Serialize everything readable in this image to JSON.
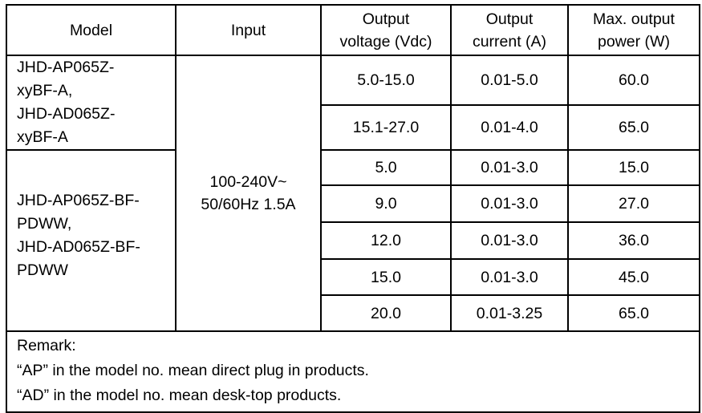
{
  "headers": {
    "model": "Model",
    "input": "Input",
    "output_voltage": [
      "Output",
      "voltage (Vdc)"
    ],
    "output_current": [
      "Output",
      "current (A)"
    ],
    "max_power": [
      "Max. output",
      "power (W)"
    ]
  },
  "groups": [
    {
      "model_lines": [
        "JHD-AP065Z-",
        "xyBF-A,",
        "JHD-AD065Z-",
        "xyBF-A"
      ],
      "rows": [
        {
          "voltage": "5.0-15.0",
          "current": "0.01-5.0",
          "power": "60.0"
        },
        {
          "voltage": "15.1-27.0",
          "current": "0.01-4.0",
          "power": "65.0"
        }
      ]
    },
    {
      "model_lines": [
        "JHD-AP065Z-BF-",
        "PDWW,",
        "JHD-AD065Z-BF-",
        "PDWW"
      ],
      "rows": [
        {
          "voltage": "5.0",
          "current": "0.01-3.0",
          "power": "15.0"
        },
        {
          "voltage": "9.0",
          "current": "0.01-3.0",
          "power": "27.0"
        },
        {
          "voltage": "12.0",
          "current": "0.01-3.0",
          "power": "36.0"
        },
        {
          "voltage": "15.0",
          "current": "0.01-3.0",
          "power": "45.0"
        },
        {
          "voltage": "20.0",
          "current": "0.01-3.25",
          "power": "65.0"
        }
      ]
    }
  ],
  "input": [
    "100-240V~",
    "50/60Hz 1.5A"
  ],
  "remarks": [
    "Remark:",
    "“AP” in the model no. mean direct plug in products.",
    "“AD” in the model no. mean desk-top products."
  ]
}
